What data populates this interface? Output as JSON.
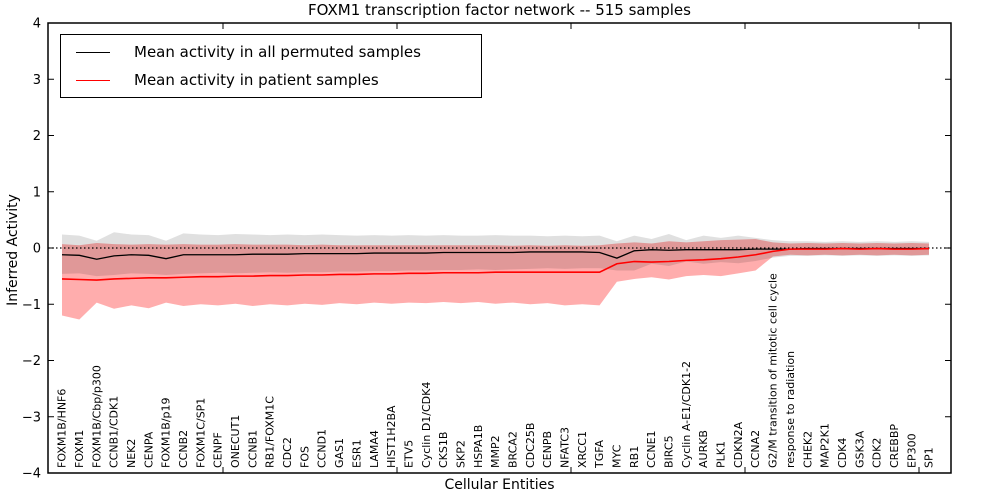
{
  "title": "FOXM1 transcription factor network -- 515 samples",
  "legend": {
    "items": [
      {
        "label": "Mean activity in all permuted samples",
        "color": "#000000"
      },
      {
        "label": "Mean activity in patient samples",
        "color": "#ff0000"
      }
    ]
  },
  "axes": {
    "ylabel": "Inferred Activity",
    "xlabel": "Cellular Entities",
    "ytick_labels": [
      "4",
      "3",
      "2",
      "1",
      "0",
      "−1",
      "−2",
      "−3",
      "−4"
    ],
    "ytick_values": [
      4,
      3,
      2,
      1,
      0,
      -1,
      -2,
      -3,
      -4
    ]
  },
  "colors": {
    "permuted_line": "#000000",
    "patient_line": "#ff0000",
    "permuted_band": "rgba(0,0,0,0.12)",
    "patient_band": "rgba(255,0,0,0.32)",
    "zero_line": "#000000",
    "frame": "#000000"
  },
  "chart_data": {
    "type": "line",
    "title": "FOXM1 transcription factor network -- 515 samples",
    "xlabel": "Cellular Entities",
    "ylabel": "Inferred Activity",
    "ylim": [
      -4,
      4
    ],
    "grid": false,
    "legend_position": "upper left",
    "zero_line_style": "dotted",
    "categories": [
      "FOXM1B/HNF6",
      "FOXM1",
      "FOXM1B/Cbp/p300",
      "CCNB1/CDK1",
      "NEK2",
      "CENPA",
      "FOXM1B/p19",
      "CCNB2",
      "FOXM1C/SP1",
      "CENPF",
      "ONECUT1",
      "CCNB1",
      "RB1/FOXM1C",
      "CDC2",
      "FOS",
      "CCND1",
      "GAS1",
      "ESR1",
      "LAMA4",
      "HIST1H2BA",
      "ETV5",
      "Cyclin D1/CDK4",
      "CKS1B",
      "SKP2",
      "HSPA1B",
      "MMP2",
      "BRCA2",
      "CDC25B",
      "CENPB",
      "NFATC3",
      "XRCC1",
      "TGFA",
      "MYC",
      "RB1",
      "CCNE1",
      "BIRC5",
      "Cyclin A-E1/CDK1-2",
      "AURKB",
      "PLK1",
      "CDKN2A",
      "CCNA2",
      "G2/M transition of mitotic cell cycle",
      "response to radiation",
      "CHEK2",
      "MAP2K1",
      "CDK4",
      "GSK3A",
      "CDK2",
      "CREBBP",
      "EP300",
      "SP1"
    ],
    "series": [
      {
        "name": "Mean activity in all permuted samples",
        "color": "#000000",
        "width": 1.3,
        "values": [
          -0.12,
          -0.13,
          -0.2,
          -0.14,
          -0.12,
          -0.13,
          -0.19,
          -0.12,
          -0.12,
          -0.12,
          -0.12,
          -0.11,
          -0.11,
          -0.11,
          -0.1,
          -0.1,
          -0.1,
          -0.1,
          -0.09,
          -0.09,
          -0.09,
          -0.09,
          -0.08,
          -0.08,
          -0.08,
          -0.08,
          -0.08,
          -0.07,
          -0.07,
          -0.07,
          -0.07,
          -0.08,
          -0.18,
          -0.05,
          -0.03,
          -0.04,
          -0.03,
          -0.03,
          -0.03,
          -0.03,
          -0.02,
          -0.02,
          -0.02,
          -0.01,
          -0.01,
          -0.01,
          -0.01,
          -0.01,
          -0.01,
          -0.01,
          -0.01
        ]
      },
      {
        "name": "Mean activity in patient samples",
        "color": "#ff0000",
        "width": 1.6,
        "values": [
          -0.55,
          -0.56,
          -0.57,
          -0.55,
          -0.54,
          -0.53,
          -0.53,
          -0.52,
          -0.51,
          -0.51,
          -0.5,
          -0.5,
          -0.49,
          -0.49,
          -0.48,
          -0.48,
          -0.47,
          -0.47,
          -0.46,
          -0.46,
          -0.45,
          -0.45,
          -0.44,
          -0.44,
          -0.44,
          -0.43,
          -0.43,
          -0.43,
          -0.43,
          -0.43,
          -0.43,
          -0.43,
          -0.28,
          -0.24,
          -0.25,
          -0.24,
          -0.22,
          -0.21,
          -0.19,
          -0.16,
          -0.12,
          -0.06,
          -0.02,
          -0.02,
          -0.02,
          -0.01,
          -0.02,
          -0.01,
          -0.02,
          -0.02,
          -0.01
        ]
      }
    ],
    "bands": [
      {
        "name": "patient-range",
        "fill": "rgba(255,0,0,0.32)",
        "upper": [
          0.07,
          0.05,
          0.09,
          0.07,
          0.06,
          0.07,
          0.06,
          0.07,
          0.06,
          0.06,
          0.07,
          0.06,
          0.06,
          0.06,
          0.05,
          0.06,
          0.05,
          0.05,
          0.05,
          0.05,
          0.05,
          0.05,
          0.05,
          0.05,
          0.05,
          0.05,
          0.04,
          0.05,
          0.04,
          0.05,
          0.04,
          0.05,
          0.08,
          0.1,
          0.08,
          0.12,
          0.1,
          0.12,
          0.14,
          0.15,
          0.16,
          0.1,
          0.08,
          0.09,
          0.08,
          0.09,
          0.08,
          0.09,
          0.08,
          0.09,
          0.08
        ],
        "lower": [
          -1.2,
          -1.27,
          -0.97,
          -1.08,
          -1.02,
          -1.07,
          -0.97,
          -1.03,
          -1.0,
          -1.02,
          -0.99,
          -1.03,
          -1.0,
          -1.02,
          -0.99,
          -1.01,
          -0.98,
          -1.0,
          -0.97,
          -0.99,
          -0.97,
          -0.98,
          -0.96,
          -0.98,
          -0.96,
          -0.99,
          -0.97,
          -1.0,
          -0.98,
          -1.02,
          -1.0,
          -1.02,
          -0.6,
          -0.55,
          -0.52,
          -0.56,
          -0.5,
          -0.48,
          -0.5,
          -0.45,
          -0.4,
          -0.15,
          -0.12,
          -0.13,
          -0.12,
          -0.13,
          -0.12,
          -0.13,
          -0.12,
          -0.13,
          -0.12
        ]
      },
      {
        "name": "permuted-range",
        "fill": "rgba(0,0,0,0.12)",
        "upper": [
          0.24,
          0.22,
          0.13,
          0.28,
          0.24,
          0.23,
          0.13,
          0.26,
          0.24,
          0.23,
          0.25,
          0.24,
          0.23,
          0.24,
          0.23,
          0.24,
          0.23,
          0.22,
          0.23,
          0.22,
          0.23,
          0.22,
          0.23,
          0.22,
          0.22,
          0.23,
          0.22,
          0.22,
          0.21,
          0.22,
          0.21,
          0.22,
          0.12,
          0.22,
          0.16,
          0.25,
          0.14,
          0.22,
          0.18,
          0.22,
          0.18,
          0.14,
          0.12,
          0.12,
          0.11,
          0.12,
          0.11,
          0.12,
          0.11,
          0.12,
          0.11
        ],
        "lower": [
          -0.46,
          -0.45,
          -0.5,
          -0.48,
          -0.45,
          -0.46,
          -0.48,
          -0.46,
          -0.45,
          -0.44,
          -0.45,
          -0.44,
          -0.43,
          -0.44,
          -0.43,
          -0.43,
          -0.42,
          -0.42,
          -0.41,
          -0.41,
          -0.4,
          -0.4,
          -0.39,
          -0.39,
          -0.38,
          -0.39,
          -0.38,
          -0.37,
          -0.36,
          -0.37,
          -0.36,
          -0.36,
          -0.4,
          -0.4,
          -0.28,
          -0.32,
          -0.24,
          -0.28,
          -0.25,
          -0.27,
          -0.23,
          -0.17,
          -0.14,
          -0.14,
          -0.13,
          -0.14,
          -0.13,
          -0.14,
          -0.13,
          -0.14,
          -0.13
        ]
      }
    ]
  }
}
